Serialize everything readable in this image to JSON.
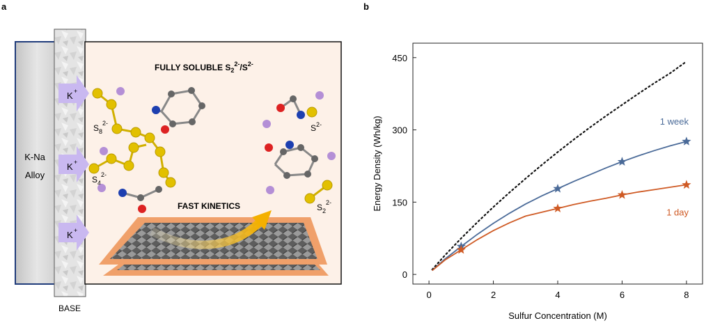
{
  "panel_a": {
    "label": "a",
    "alloy_line1": "K-Na",
    "alloy_line2": "Alloy",
    "separator_label": "BASE",
    "ion_label": "K",
    "ion_charge": "+",
    "title_main": "FULLY SOLUBLE S",
    "title_sub1": "2",
    "title_sup1": "2-",
    "title_slash": "/S",
    "title_sup2": "2-",
    "species_s8": "S",
    "species_s8_sub": "8",
    "species_s8_sup": "2-",
    "species_s4": "S",
    "species_s4_sub": "4",
    "species_s4_sup": "2-",
    "species_s2": "S",
    "species_s2_sub": "2",
    "species_s2_sup": "2-",
    "species_sulfide": "S",
    "species_sulfide_sup": "2-",
    "kinetics_label": "FAST KINETICS",
    "colors": {
      "alloy_border": "#1f3b7a",
      "electrolyte_bg": "#fdf1e8",
      "sulfur": "#e2c000",
      "potassium": "#b48fd6",
      "arrow": "#c9b8f0",
      "electrode": "#f0a06a"
    }
  },
  "chart_data": {
    "label": "b",
    "type": "line",
    "xlabel": "Sulfur Concentration (M)",
    "ylabel": "Energy Density (Wh/kg)",
    "xlim": [
      -0.5,
      8.5
    ],
    "ylim": [
      -20,
      480
    ],
    "xticks": [
      0,
      2,
      4,
      6,
      8
    ],
    "yticks": [
      0,
      150,
      300,
      450
    ],
    "series": [
      {
        "name": "theoretical",
        "style": "dotted",
        "color": "#111111",
        "show_label": false,
        "x": [
          0.1,
          0.5,
          1,
          1.5,
          2,
          2.5,
          3,
          3.5,
          4,
          4.5,
          5,
          5.5,
          6,
          6.5,
          7,
          7.5,
          8
        ],
        "y": [
          10,
          40,
          75,
          108,
          140,
          170,
          199,
          227,
          254,
          280,
          305,
          329,
          352,
          375,
          397,
          418,
          442
        ]
      },
      {
        "name": "1 week",
        "style": "solid",
        "color": "#4a6a98",
        "show_label": true,
        "x": [
          0.1,
          0.5,
          1,
          1.5,
          2,
          2.5,
          3,
          3.5,
          4,
          4.5,
          5,
          5.5,
          6,
          6.5,
          7,
          7.5,
          8
        ],
        "y": [
          8,
          32,
          58,
          83,
          106,
          127,
          146,
          163,
          178,
          193,
          207,
          221,
          234,
          246,
          257,
          267,
          276
        ],
        "markers_x": [
          1,
          4,
          6,
          8
        ],
        "markers_y": [
          58,
          178,
          234,
          276
        ]
      },
      {
        "name": "1 day",
        "style": "solid",
        "color": "#cf5a24",
        "show_label": true,
        "x": [
          0.1,
          0.5,
          1,
          1.5,
          2,
          2.5,
          3,
          3.5,
          4,
          4.5,
          5,
          5.5,
          6,
          6.5,
          7,
          7.5,
          8
        ],
        "y": [
          8,
          30,
          51,
          72,
          91,
          107,
          121,
          129,
          137,
          145,
          152,
          158,
          165,
          171,
          176,
          181,
          186
        ],
        "markers_x": [
          1,
          4,
          6,
          8
        ],
        "markers_y": [
          51,
          137,
          165,
          186
        ]
      }
    ]
  }
}
